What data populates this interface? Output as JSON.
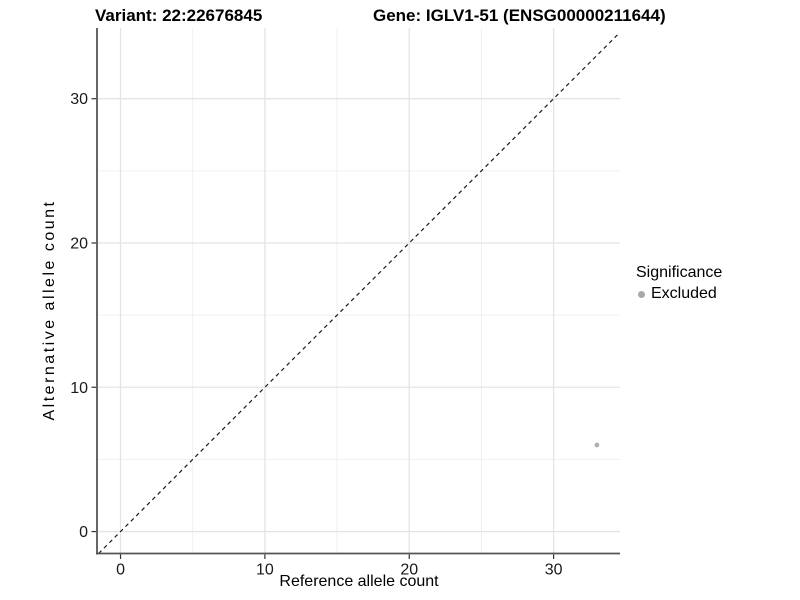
{
  "titles": {
    "variant": "Variant: 22:22676845",
    "gene": "Gene: IGLV1-51 (ENSG00000211644)"
  },
  "chart_data": {
    "type": "scatter",
    "title_left": "Variant: 22:22676845",
    "title_right": "Gene: IGLV1-51 (ENSG00000211644)",
    "xlabel": "Reference allele count",
    "ylabel": "Alternative allele count",
    "xlim": [
      -1.63,
      34.6
    ],
    "ylim": [
      -1.52,
      34.9
    ],
    "x_ticks": [
      0,
      10,
      20,
      30
    ],
    "y_ticks": [
      0,
      10,
      20,
      30
    ],
    "x_minor_ticks": [
      5,
      15,
      25,
      35
    ],
    "y_minor_ticks": [
      5,
      15,
      25,
      35
    ],
    "grid": true,
    "reference_line": {
      "type": "identity",
      "style": "dashed",
      "color": "#1a1a1a"
    },
    "series": [
      {
        "name": "Excluded",
        "color": "#b0b0b0",
        "points": [
          {
            "x": 33,
            "y": 6
          }
        ]
      }
    ],
    "legend": {
      "title": "Significance",
      "position": "right",
      "items": [
        {
          "label": "Excluded",
          "color": "#a8a8a8",
          "marker": "circle"
        }
      ]
    },
    "colors": {
      "axis_line": "#555555",
      "tick_mark": "#333333",
      "grid_major": "#e4e4e4",
      "grid_minor": "#f0f0f0",
      "tick_label": "#1a1a1a",
      "background": "#ffffff"
    }
  }
}
